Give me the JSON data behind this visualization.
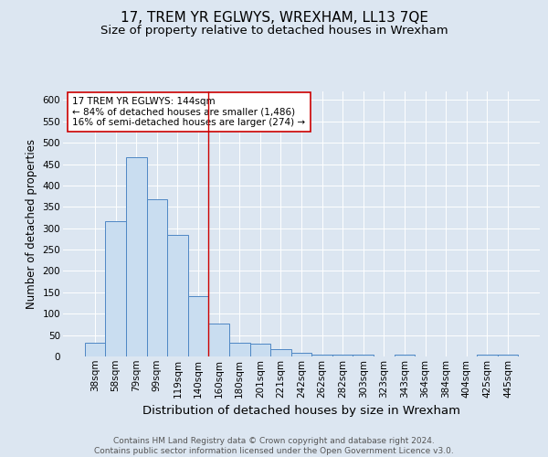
{
  "title": "17, TREM YR EGLWYS, WREXHAM, LL13 7QE",
  "subtitle": "Size of property relative to detached houses in Wrexham",
  "xlabel": "Distribution of detached houses by size in Wrexham",
  "ylabel": "Number of detached properties",
  "categories": [
    "38sqm",
    "58sqm",
    "79sqm",
    "99sqm",
    "119sqm",
    "140sqm",
    "160sqm",
    "180sqm",
    "201sqm",
    "221sqm",
    "242sqm",
    "262sqm",
    "282sqm",
    "303sqm",
    "323sqm",
    "343sqm",
    "364sqm",
    "384sqm",
    "404sqm",
    "425sqm",
    "445sqm"
  ],
  "values": [
    33,
    317,
    467,
    367,
    285,
    141,
    76,
    33,
    30,
    18,
    8,
    5,
    5,
    5,
    0,
    5,
    0,
    0,
    0,
    5,
    5
  ],
  "bar_color": "#c9ddf0",
  "bar_edge_color": "#4e87c4",
  "vline_x": 5.5,
  "vline_color": "#cc0000",
  "annotation_text": "17 TREM YR EGLWYS: 144sqm\n← 84% of detached houses are smaller (1,486)\n16% of semi-detached houses are larger (274) →",
  "annotation_box_color": "#ffffff",
  "annotation_box_edge_color": "#cc0000",
  "ylim": [
    0,
    620
  ],
  "yticks": [
    0,
    50,
    100,
    150,
    200,
    250,
    300,
    350,
    400,
    450,
    500,
    550,
    600
  ],
  "background_color": "#dce6f1",
  "plot_bg_color": "#dce6f1",
  "footer": "Contains HM Land Registry data © Crown copyright and database right 2024.\nContains public sector information licensed under the Open Government Licence v3.0.",
  "title_fontsize": 11,
  "subtitle_fontsize": 9.5,
  "xlabel_fontsize": 9.5,
  "ylabel_fontsize": 8.5,
  "tick_fontsize": 7.5,
  "footer_fontsize": 6.5,
  "annot_fontsize": 7.5
}
